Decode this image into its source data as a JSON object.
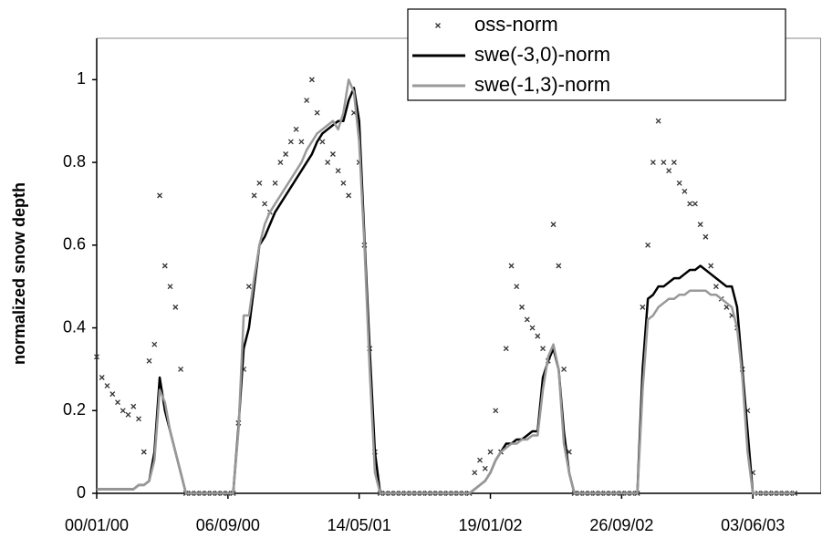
{
  "chart_data": {
    "type": "line",
    "y_label": "normalized snow depth",
    "legend": "top-right",
    "x": [
      0,
      10,
      20,
      30,
      40,
      50,
      60,
      70,
      80,
      90,
      100,
      110,
      120,
      130,
      140,
      150,
      160,
      170,
      180,
      190,
      200,
      210,
      220,
      230,
      240,
      250,
      260,
      270,
      280,
      290,
      300,
      310,
      320,
      330,
      340,
      350,
      360,
      370,
      380,
      390,
      400,
      410,
      420,
      430,
      440,
      450,
      460,
      470,
      480,
      490,
      500,
      510,
      520,
      530,
      540,
      550,
      560,
      570,
      580,
      590,
      600,
      610,
      620,
      630,
      640,
      650,
      660,
      670,
      680,
      690,
      700,
      710,
      720,
      730,
      740,
      750,
      760,
      770,
      780,
      790,
      800,
      810,
      820,
      830,
      840,
      850,
      860,
      870,
      880,
      890,
      900,
      910,
      920,
      930,
      940,
      950,
      960,
      970,
      980,
      990,
      1000,
      1010,
      1020,
      1030,
      1040,
      1050,
      1060,
      1070,
      1080,
      1090,
      1100,
      1110,
      1120,
      1130,
      1140,
      1150,
      1160,
      1170,
      1180,
      1190,
      1200,
      1210,
      1220,
      1230,
      1240,
      1250,
      1260,
      1270,
      1280,
      1290,
      1300,
      1310,
      1320,
      1330
    ],
    "series": [
      {
        "name": "oss-norm",
        "type": "scatter",
        "marker": "x",
        "color": "#333333",
        "values": [
          0.33,
          0.28,
          0.26,
          0.24,
          0.22,
          0.2,
          0.19,
          0.21,
          0.18,
          0.1,
          0.32,
          0.36,
          0.72,
          0.55,
          0.5,
          0.45,
          0.3,
          0,
          0,
          0,
          0,
          0,
          0,
          0,
          0,
          0,
          0,
          0.17,
          0.3,
          0.5,
          0.72,
          0.75,
          0.7,
          0.68,
          0.75,
          0.8,
          0.82,
          0.85,
          0.88,
          0.85,
          0.95,
          1.0,
          0.92,
          0.85,
          0.8,
          0.82,
          0.78,
          0.75,
          0.72,
          0.92,
          0.8,
          0.6,
          0.35,
          0.1,
          0,
          0,
          0,
          0,
          0,
          0,
          0,
          0,
          0,
          0,
          0,
          0,
          0,
          0,
          0,
          0,
          0,
          0,
          0.05,
          0.08,
          0.06,
          0.1,
          0.2,
          0.1,
          0.35,
          0.55,
          0.5,
          0.45,
          0.42,
          0.4,
          0.38,
          0.35,
          0.32,
          0.65,
          0.55,
          0.3,
          0.1,
          0,
          0,
          0,
          0,
          0,
          0,
          0,
          0,
          0,
          0,
          0,
          0,
          0,
          0.45,
          0.6,
          0.8,
          0.9,
          0.8,
          0.78,
          0.8,
          0.75,
          0.73,
          0.7,
          0.7,
          0.65,
          0.62,
          0.55,
          0.5,
          0.47,
          0.45,
          0.43,
          0.4,
          0.3,
          0.2,
          0.05,
          0,
          0,
          0,
          0,
          0,
          0,
          0,
          0
        ]
      },
      {
        "name": "swe(-3,0)-norm",
        "type": "line",
        "color": "#000000",
        "values": [
          0.01,
          0.01,
          0.01,
          0.01,
          0.01,
          0.01,
          0.01,
          0.01,
          0.02,
          0.02,
          0.03,
          0.1,
          0.28,
          0.2,
          0.15,
          0.1,
          0.05,
          0,
          0,
          0,
          0,
          0,
          0,
          0,
          0,
          0,
          0,
          0.16,
          0.35,
          0.4,
          0.5,
          0.6,
          0.62,
          0.65,
          0.68,
          0.7,
          0.72,
          0.74,
          0.76,
          0.78,
          0.8,
          0.82,
          0.85,
          0.87,
          0.88,
          0.89,
          0.9,
          0.9,
          0.95,
          0.98,
          0.9,
          0.62,
          0.35,
          0.1,
          0,
          0,
          0,
          0,
          0,
          0,
          0,
          0,
          0,
          0,
          0,
          0,
          0,
          0,
          0,
          0,
          0,
          0,
          0.01,
          0.02,
          0.03,
          0.05,
          0.08,
          0.1,
          0.12,
          0.12,
          0.13,
          0.13,
          0.14,
          0.15,
          0.15,
          0.28,
          0.32,
          0.35,
          0.3,
          0.15,
          0.05,
          0,
          0,
          0,
          0,
          0,
          0,
          0,
          0,
          0,
          0,
          0,
          0,
          0,
          0.3,
          0.47,
          0.48,
          0.5,
          0.5,
          0.51,
          0.52,
          0.52,
          0.53,
          0.54,
          0.54,
          0.55,
          0.54,
          0.53,
          0.52,
          0.51,
          0.5,
          0.5,
          0.45,
          0.3,
          0.15,
          0,
          0,
          0,
          0,
          0,
          0,
          0,
          0,
          0
        ]
      },
      {
        "name": "swe(-1,3)-norm",
        "type": "line",
        "color": "#999999",
        "values": [
          0.01,
          0.01,
          0.01,
          0.01,
          0.01,
          0.01,
          0.01,
          0.01,
          0.02,
          0.02,
          0.03,
          0.08,
          0.25,
          0.22,
          0.15,
          0.1,
          0.05,
          0,
          0,
          0,
          0,
          0,
          0,
          0,
          0,
          0,
          0,
          0.15,
          0.43,
          0.43,
          0.52,
          0.6,
          0.65,
          0.68,
          0.7,
          0.72,
          0.74,
          0.76,
          0.78,
          0.8,
          0.83,
          0.85,
          0.87,
          0.88,
          0.89,
          0.9,
          0.88,
          0.92,
          1.0,
          0.97,
          0.85,
          0.6,
          0.3,
          0.05,
          0,
          0,
          0,
          0,
          0,
          0,
          0,
          0,
          0,
          0,
          0,
          0,
          0,
          0,
          0,
          0,
          0,
          0,
          0.01,
          0.02,
          0.03,
          0.05,
          0.08,
          0.1,
          0.11,
          0.12,
          0.12,
          0.13,
          0.13,
          0.14,
          0.14,
          0.25,
          0.33,
          0.36,
          0.3,
          0.12,
          0.05,
          0,
          0,
          0,
          0,
          0,
          0,
          0,
          0,
          0,
          0,
          0,
          0,
          0,
          0.25,
          0.42,
          0.43,
          0.45,
          0.46,
          0.47,
          0.47,
          0.48,
          0.48,
          0.49,
          0.49,
          0.49,
          0.49,
          0.48,
          0.48,
          0.47,
          0.46,
          0.45,
          0.4,
          0.28,
          0.1,
          0,
          0,
          0,
          0,
          0,
          0,
          0,
          0,
          0
        ]
      }
    ],
    "xlim": [
      0,
      1380
    ],
    "xticks": [
      {
        "value": 0,
        "label": "00/01/00"
      },
      {
        "value": 250,
        "label": "06/09/00"
      },
      {
        "value": 500,
        "label": "14/05/01"
      },
      {
        "value": 750,
        "label": "19/01/02"
      },
      {
        "value": 1000,
        "label": "26/09/02"
      },
      {
        "value": 1250,
        "label": "03/06/03"
      }
    ],
    "ylim": [
      0,
      1.1
    ],
    "yticks": [
      0,
      0.2,
      0.4,
      0.6,
      0.8,
      1
    ]
  }
}
